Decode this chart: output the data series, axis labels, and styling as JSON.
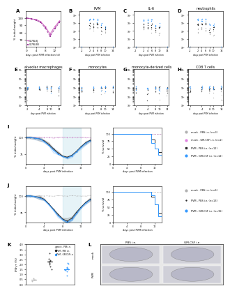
{
  "colors": {
    "mock_PBS": "#b0b0b0",
    "mock_GMCSF": "#e080e0",
    "PVM_PBS": "#2a2a2a",
    "PVM_GMCSF": "#3399ff"
  },
  "legend_I": [
    "mock - PBS i.n. (n=3)",
    "mock - GM-CSF i.n. (n=2)",
    "PVM - PBS i.n. (n=12)",
    "PVM - GM-CSF i.n. (n=12)"
  ],
  "legend_J": [
    "mock - PBS i.n. (n=6)",
    "PVM - PBS i.n. (n=13)",
    "PVM - GM-CSF i.n. (n=15)"
  ],
  "panel_B_title": "PVM",
  "panel_C_title": "IL-6",
  "panel_D_title": "neutrophils",
  "panel_E_title": "alveolar macrophages",
  "panel_F_title": "monocytes",
  "panel_G_title": "monocyte-derived cells",
  "panel_H_title": "CD8 T cells",
  "bg_color": "#ffffff"
}
